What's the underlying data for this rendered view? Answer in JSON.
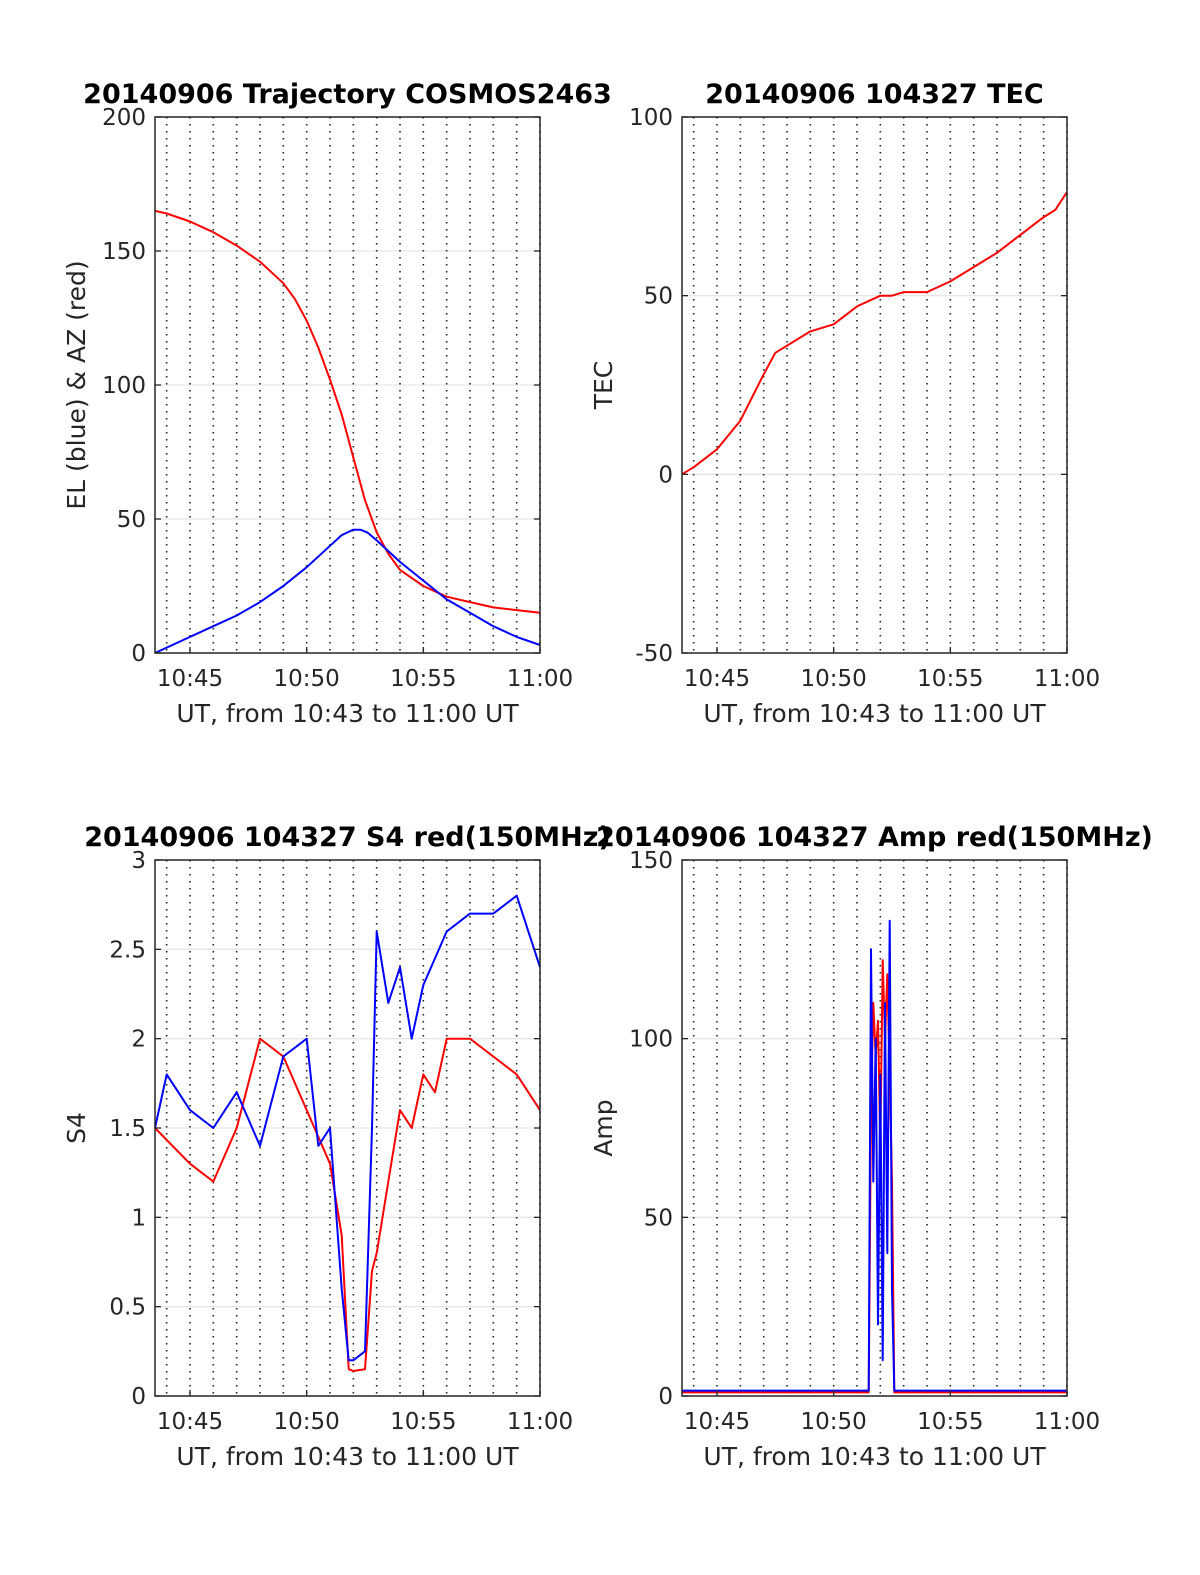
{
  "chart_data": [
    {
      "type": "line",
      "title": "20140906 Trajectory COSMOS2463",
      "xlabel": "UT, from 10:43 to 11:00 UT",
      "ylabel": "EL (blue) & AZ (red)",
      "xlim_minutes": [
        43.5,
        60
      ],
      "xticks": [
        45,
        50,
        55,
        60
      ],
      "xtick_labels": [
        "10:45",
        "10:50",
        "10:55",
        "11:00"
      ],
      "ylim": [
        0,
        200
      ],
      "yticks": [
        0,
        50,
        100,
        150,
        200
      ],
      "ytick_labels": [
        "0",
        "50",
        "100",
        "150",
        "200"
      ],
      "grid": true,
      "series": [
        {
          "color": "#ff0000",
          "x": [
            43.5,
            44,
            45,
            46,
            47,
            48,
            49,
            49.5,
            50,
            50.5,
            51,
            51.5,
            52,
            52.5,
            53,
            53.5,
            54,
            55,
            56,
            57,
            58,
            59,
            60
          ],
          "y": [
            165,
            164,
            161,
            157,
            152,
            146,
            138,
            132,
            124,
            114,
            102,
            89,
            73,
            57,
            45,
            37,
            31,
            25,
            21,
            19,
            17,
            16,
            15
          ]
        },
        {
          "color": "#0000ff",
          "x": [
            43.5,
            44,
            45,
            46,
            47,
            48,
            49,
            50,
            51,
            51.5,
            52,
            52.3,
            52.6,
            53,
            54,
            55,
            56,
            57,
            58,
            59,
            60
          ],
          "y": [
            0,
            2,
            6,
            10,
            14,
            19,
            25,
            32,
            40,
            44,
            46,
            46,
            45,
            42,
            34,
            27,
            20,
            15,
            10,
            6,
            3
          ]
        }
      ]
    },
    {
      "type": "line",
      "title": "20140906 104327 TEC",
      "xlabel": "UT, from 10:43 to 11:00 UT",
      "ylabel": "TEC",
      "xlim_minutes": [
        43.5,
        60
      ],
      "xticks": [
        45,
        50,
        55,
        60
      ],
      "xtick_labels": [
        "10:45",
        "10:50",
        "10:55",
        "11:00"
      ],
      "ylim": [
        -50,
        100
      ],
      "yticks": [
        -50,
        0,
        50,
        100
      ],
      "ytick_labels": [
        "-50",
        "0",
        "50",
        "100"
      ],
      "grid": true,
      "series": [
        {
          "color": "#ff0000",
          "x": [
            43.5,
            44,
            45,
            46,
            47,
            47.5,
            48,
            49,
            50,
            51,
            52,
            52.5,
            53,
            54,
            55,
            56,
            57,
            58,
            59,
            59.5,
            60
          ],
          "y": [
            0,
            2,
            7,
            15,
            28,
            34,
            36,
            40,
            42,
            47,
            50,
            50,
            51,
            51,
            54,
            58,
            62,
            67,
            72,
            74,
            79
          ]
        }
      ]
    },
    {
      "type": "line",
      "title": "20140906 104327 S4 red(150MHz)",
      "xlabel": "UT, from 10:43 to 11:00 UT",
      "ylabel": "S4",
      "xlim_minutes": [
        43.5,
        60
      ],
      "xticks": [
        45,
        50,
        55,
        60
      ],
      "xtick_labels": [
        "10:45",
        "10:50",
        "10:55",
        "11:00"
      ],
      "ylim": [
        0,
        3
      ],
      "yticks": [
        0,
        0.5,
        1,
        1.5,
        2,
        2.5,
        3
      ],
      "ytick_labels": [
        "0",
        "0.5",
        "1",
        "1.5",
        "2",
        "2.5",
        "3"
      ],
      "grid": true,
      "series": [
        {
          "color": "#ff0000",
          "x": [
            43.5,
            45,
            46,
            47,
            48,
            49,
            50,
            51,
            51.5,
            51.8,
            52,
            52.5,
            52.8,
            53,
            53.5,
            54,
            54.5,
            55,
            55.5,
            56,
            57,
            58,
            59,
            60
          ],
          "y": [
            1.5,
            1.3,
            1.2,
            1.5,
            2.0,
            1.9,
            1.6,
            1.3,
            0.9,
            0.15,
            0.14,
            0.15,
            0.7,
            0.8,
            1.2,
            1.6,
            1.5,
            1.8,
            1.7,
            2.0,
            2.0,
            1.9,
            1.8,
            1.6
          ]
        },
        {
          "color": "#0000ff",
          "x": [
            43.5,
            44,
            45,
            46,
            47,
            48,
            49,
            50,
            50.5,
            51,
            51.5,
            51.8,
            52,
            52.5,
            52.8,
            53,
            53.5,
            54,
            54.5,
            55,
            56,
            57,
            58,
            59,
            60
          ],
          "y": [
            1.5,
            1.8,
            1.6,
            1.5,
            1.7,
            1.4,
            1.9,
            2.0,
            1.4,
            1.5,
            0.6,
            0.2,
            0.2,
            0.25,
            1.5,
            2.6,
            2.2,
            2.4,
            2.0,
            2.3,
            2.6,
            2.7,
            2.7,
            2.8,
            2.4
          ]
        }
      ]
    },
    {
      "type": "line",
      "title": "20140906 104327 Amp red(150MHz)",
      "xlabel": "UT, from 10:43 to 11:00 UT",
      "ylabel": "Amp",
      "xlim_minutes": [
        43.5,
        60
      ],
      "xticks": [
        45,
        50,
        55,
        60
      ],
      "xtick_labels": [
        "10:45",
        "10:50",
        "10:55",
        "11:00"
      ],
      "ylim": [
        0,
        150
      ],
      "yticks": [
        0,
        50,
        100,
        150
      ],
      "ytick_labels": [
        "0",
        "50",
        "100",
        "150"
      ],
      "grid": true,
      "series": [
        {
          "color": "#ff0000",
          "x": [
            43.5,
            51.5,
            51.6,
            51.7,
            51.8,
            51.9,
            52.0,
            52.1,
            52.2,
            52.3,
            52.4,
            52.5,
            52.6,
            60
          ],
          "y": [
            1,
            1,
            80,
            110,
            95,
            105,
            70,
            122,
            100,
            118,
            90,
            60,
            1,
            1
          ]
        },
        {
          "color": "#0000ff",
          "x": [
            43.5,
            51.5,
            51.6,
            51.7,
            51.8,
            51.9,
            52.0,
            52.1,
            52.2,
            52.3,
            52.4,
            52.5,
            52.6,
            60
          ],
          "y": [
            1.5,
            1.5,
            125,
            60,
            100,
            20,
            90,
            10,
            110,
            40,
            133,
            30,
            1.5,
            1.5
          ]
        }
      ]
    }
  ]
}
